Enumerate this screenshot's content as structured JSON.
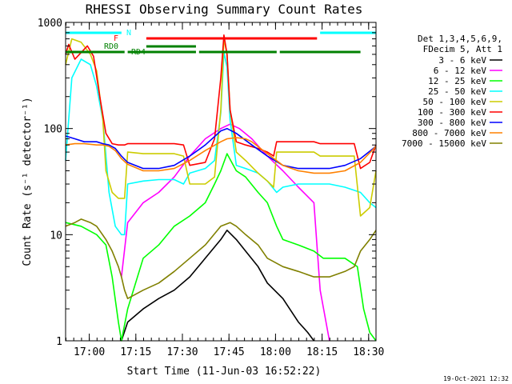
{
  "chart_data": {
    "type": "line",
    "title": "RHESSI Observing Summary Count Rates",
    "xlabel": "Start Time (11-Jun-03 16:52:22)",
    "ylabel": "Count Rate (s⁻¹ detector⁻¹)",
    "y_scale": "log",
    "ylim": [
      1,
      1000
    ],
    "xlim_minutes": [
      0,
      100
    ],
    "x_tick_labels": [
      "17:00",
      "17:15",
      "17:30",
      "17:45",
      "18:00",
      "18:15",
      "18:30"
    ],
    "x_tick_minutes": [
      7.63,
      22.63,
      37.63,
      52.63,
      67.63,
      82.63,
      97.63
    ],
    "y_tick_labels": [
      "1",
      "10",
      "100",
      "1000"
    ],
    "y_tick_values": [
      1,
      10,
      100,
      1000
    ],
    "legend": {
      "position": "right",
      "header": [
        "Det 1,3,4,5,6,9,",
        "FDecim 5, Att 1"
      ]
    },
    "timestamp": "19-Oct-2021 12:32",
    "flags": [
      {
        "label": "N",
        "color": "#00ffff",
        "segments": [
          [
            0,
            18
          ],
          [
            82,
            100
          ]
        ]
      },
      {
        "label": "F",
        "color": "#ff0000",
        "segments": [
          [
            26,
            81
          ]
        ]
      },
      {
        "label": "RD0",
        "color": "#008000",
        "segments": [
          [
            26,
            42
          ]
        ]
      },
      {
        "label": "RD4",
        "color": "#008000",
        "segments": [
          [
            0,
            19
          ],
          [
            20,
            42
          ],
          [
            43,
            68
          ],
          [
            69,
            95
          ]
        ]
      }
    ],
    "series": [
      {
        "name": "3 - 6 keV",
        "color": "#000000",
        "x": [
          18,
          20,
          25,
          30,
          35,
          40,
          45,
          50,
          52,
          55,
          58,
          62,
          65,
          70,
          75,
          78,
          80
        ],
        "values": [
          1,
          1.5,
          2,
          2.5,
          3,
          4,
          6,
          9,
          11,
          9,
          7,
          5,
          3.5,
          2.5,
          1.5,
          1.2,
          1
        ]
      },
      {
        "name": "6 - 12 keV",
        "color": "#ff00ff",
        "x": [
          18,
          20,
          25,
          30,
          35,
          40,
          45,
          50,
          53,
          56,
          60,
          65,
          70,
          75,
          80,
          82,
          85
        ],
        "values": [
          4,
          13,
          20,
          25,
          35,
          55,
          80,
          100,
          110,
          100,
          80,
          55,
          40,
          28,
          20,
          3,
          1
        ]
      },
      {
        "name": "12 - 25 keV",
        "color": "#00ff00",
        "x": [
          0,
          5,
          10,
          13,
          15,
          17,
          18,
          20,
          25,
          30,
          35,
          40,
          45,
          48,
          50,
          52,
          55,
          58,
          62,
          65,
          68,
          70,
          75,
          80,
          83,
          85,
          90,
          94,
          96,
          98,
          100
        ],
        "values": [
          13,
          12,
          10,
          8,
          4,
          1.5,
          1,
          2,
          6,
          8,
          12,
          15,
          20,
          30,
          40,
          58,
          40,
          35,
          25,
          20,
          12,
          9,
          8,
          7,
          6,
          6,
          6,
          5,
          2,
          1.2,
          1
        ]
      },
      {
        "name": "25 - 50 keV",
        "color": "#00ffff",
        "x": [
          0,
          2,
          5,
          8,
          10,
          12,
          14,
          16,
          18,
          19,
          20,
          25,
          30,
          35,
          38,
          40,
          45,
          48,
          50,
          51,
          52,
          53,
          55,
          58,
          62,
          65,
          68,
          70,
          75,
          80,
          85,
          90,
          95,
          98,
          100
        ],
        "values": [
          50,
          300,
          450,
          400,
          250,
          120,
          25,
          12,
          10,
          10,
          30,
          32,
          33,
          33,
          30,
          38,
          42,
          50,
          140,
          520,
          380,
          120,
          45,
          42,
          38,
          32,
          25,
          28,
          30,
          30,
          30,
          28,
          25,
          20,
          18
        ]
      },
      {
        "name": "50 - 100 keV",
        "color": "#cccc00",
        "x": [
          0,
          2,
          5,
          8,
          10,
          12,
          13,
          15,
          17,
          18,
          19,
          20,
          25,
          30,
          35,
          38,
          40,
          45,
          48,
          50,
          51,
          52,
          53,
          55,
          58,
          62,
          65,
          67,
          68,
          70,
          75,
          80,
          82,
          85,
          90,
          93,
          95,
          98,
          100
        ],
        "values": [
          400,
          700,
          650,
          500,
          350,
          120,
          40,
          25,
          22,
          22,
          22,
          60,
          58,
          58,
          58,
          55,
          30,
          30,
          35,
          150,
          700,
          500,
          150,
          60,
          50,
          38,
          32,
          28,
          60,
          60,
          60,
          60,
          55,
          55,
          55,
          55,
          15,
          18,
          40
        ]
      },
      {
        "name": "100 - 300 keV",
        "color": "#ff0000",
        "x": [
          0,
          1,
          3,
          5,
          7,
          9,
          11,
          13,
          15,
          17,
          18,
          19,
          20,
          25,
          30,
          35,
          38,
          40,
          45,
          48,
          50,
          51,
          52,
          53,
          55,
          58,
          62,
          65,
          67,
          68,
          70,
          75,
          80,
          82,
          85,
          90,
          93,
          95,
          98,
          100
        ],
        "values": [
          500,
          620,
          450,
          520,
          600,
          480,
          200,
          90,
          72,
          70,
          70,
          70,
          72,
          72,
          72,
          72,
          70,
          45,
          48,
          80,
          300,
          760,
          500,
          150,
          75,
          70,
          65,
          60,
          55,
          75,
          75,
          75,
          75,
          72,
          72,
          72,
          72,
          42,
          48,
          70
        ]
      },
      {
        "name": "300 - 800 keV",
        "color": "#0000ff",
        "x": [
          0,
          3,
          6,
          10,
          12,
          14,
          16,
          18,
          20,
          25,
          30,
          35,
          40,
          45,
          50,
          52,
          55,
          60,
          65,
          70,
          75,
          80,
          85,
          90,
          95,
          100
        ],
        "values": [
          85,
          80,
          75,
          75,
          72,
          70,
          65,
          55,
          48,
          42,
          42,
          45,
          55,
          70,
          95,
          100,
          90,
          70,
          55,
          45,
          42,
          42,
          42,
          45,
          52,
          68
        ]
      },
      {
        "name": "800 - 7000 keV",
        "color": "#ff8000",
        "x": [
          0,
          3,
          6,
          10,
          12,
          14,
          16,
          18,
          20,
          25,
          30,
          35,
          40,
          45,
          50,
          52,
          55,
          58,
          60,
          65,
          70,
          75,
          80,
          85,
          90,
          95,
          100
        ],
        "values": [
          70,
          72,
          72,
          70,
          70,
          68,
          62,
          52,
          46,
          40,
          40,
          42,
          50,
          62,
          75,
          80,
          82,
          80,
          75,
          58,
          45,
          40,
          38,
          38,
          40,
          48,
          68
        ]
      },
      {
        "name": "7000 - 15000 keV",
        "color": "#808000",
        "x": [
          0,
          3,
          5,
          8,
          10,
          13,
          15,
          17,
          18,
          19,
          20,
          25,
          30,
          35,
          40,
          45,
          50,
          53,
          55,
          58,
          62,
          65,
          70,
          75,
          80,
          83,
          85,
          90,
          93,
          95,
          98,
          100
        ],
        "values": [
          12,
          13,
          14,
          13,
          12,
          9,
          7,
          5,
          4,
          3,
          2.5,
          3,
          3.5,
          4.5,
          6,
          8,
          12,
          13,
          12,
          10,
          8,
          6,
          5,
          4.5,
          4,
          4,
          4,
          4.5,
          5,
          7,
          9,
          11
        ]
      }
    ]
  }
}
